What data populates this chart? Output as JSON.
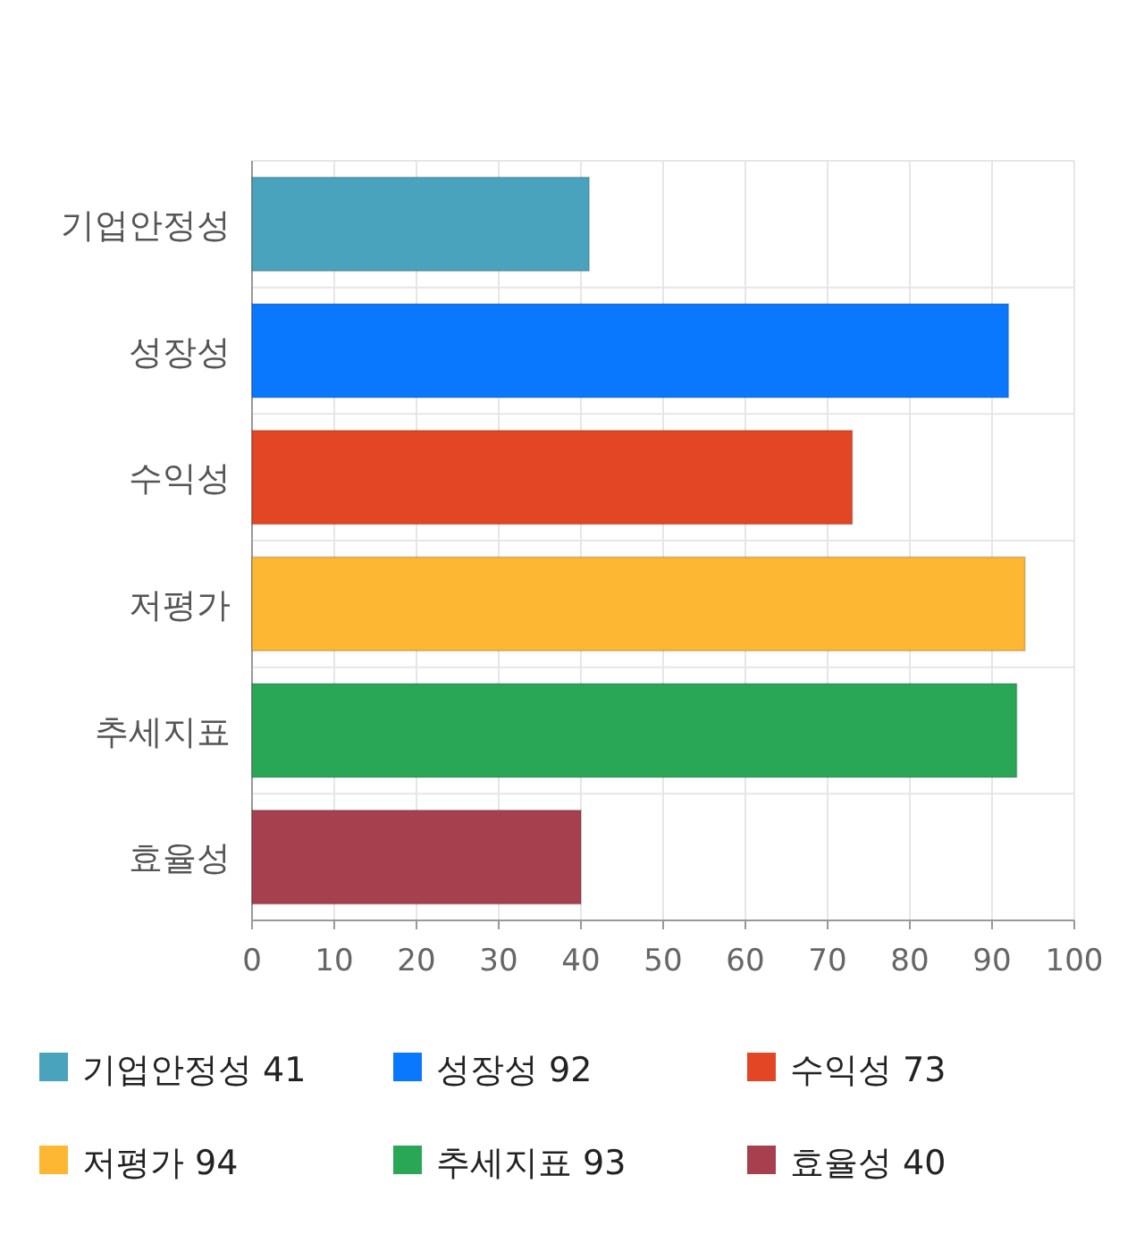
{
  "chart_data": {
    "type": "bar",
    "orientation": "horizontal",
    "stacked": true,
    "categories": [
      "기업안정성",
      "성장성",
      "수익성",
      "저평가",
      "추세지표",
      "효율성"
    ],
    "series": [
      {
        "name": "기업안정성 41",
        "color": "#4aa3bd",
        "values": [
          41,
          null,
          null,
          null,
          null,
          null
        ]
      },
      {
        "name": "성장성 92",
        "color": "#0a78fe",
        "values": [
          null,
          92,
          null,
          null,
          null,
          null
        ]
      },
      {
        "name": "수익성 73",
        "color": "#e24624",
        "values": [
          null,
          null,
          73,
          null,
          null,
          null
        ]
      },
      {
        "name": "저평가 94",
        "color": "#fdb733",
        "values": [
          null,
          null,
          null,
          94,
          null,
          null
        ]
      },
      {
        "name": "추세지표 93",
        "color": "#29a756",
        "values": [
          null,
          null,
          null,
          null,
          93,
          null
        ]
      },
      {
        "name": "효율성 40",
        "color": "#a6404f",
        "values": [
          null,
          null,
          null,
          null,
          null,
          40
        ]
      }
    ],
    "xlim": [
      0,
      100
    ],
    "xticks": [
      0,
      10,
      20,
      30,
      40,
      50,
      60,
      70,
      80,
      90,
      100
    ],
    "grid": true,
    "legend": "bottom"
  }
}
